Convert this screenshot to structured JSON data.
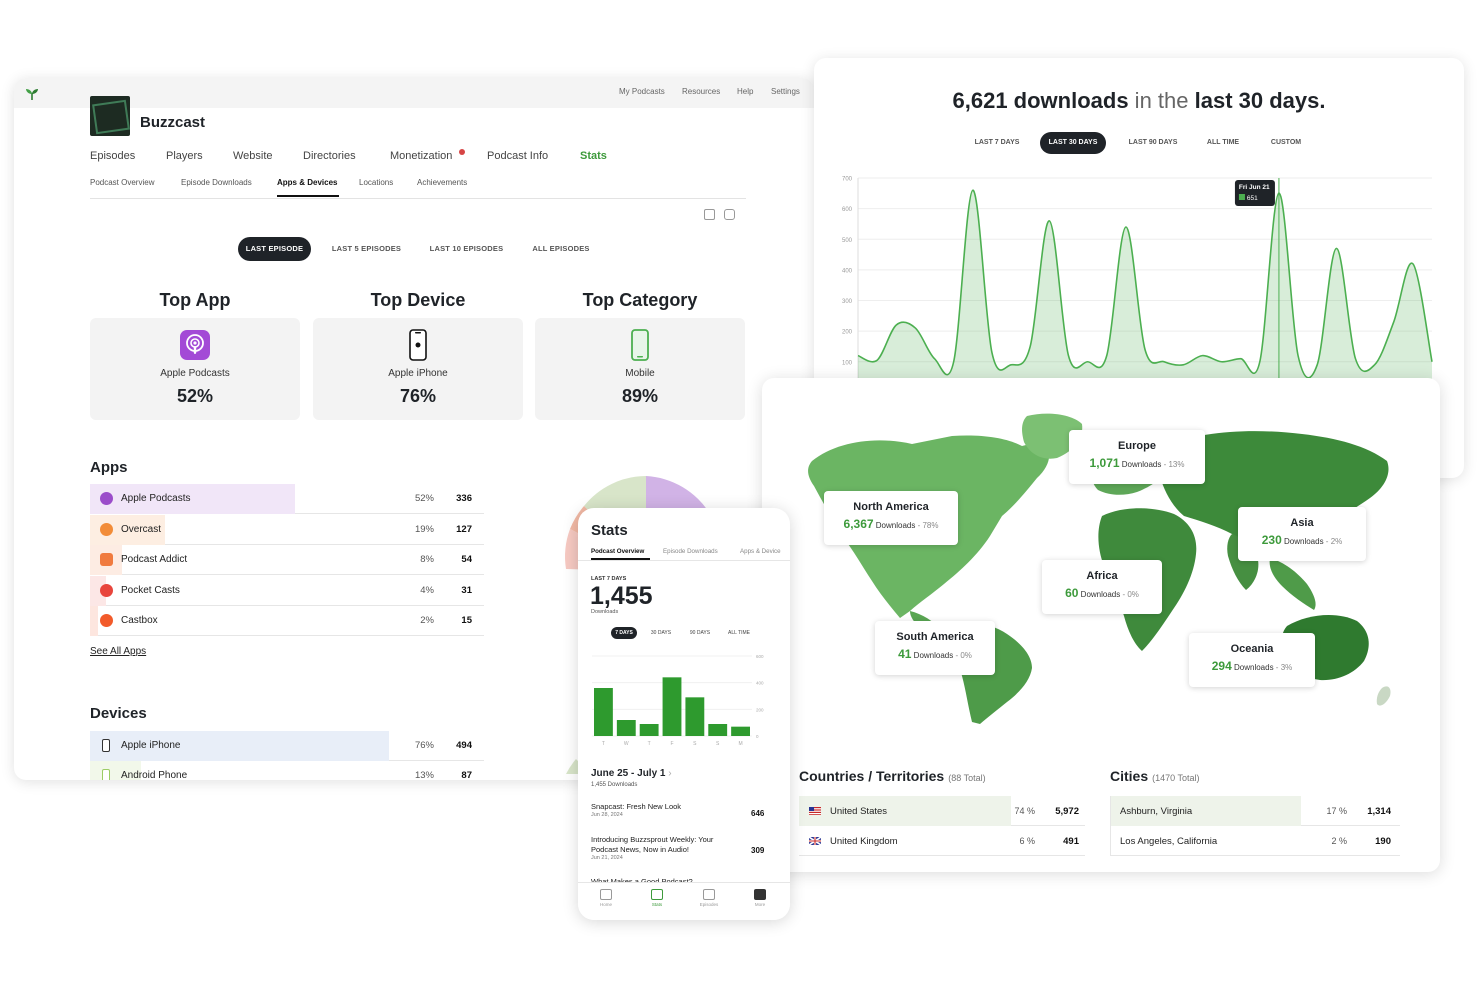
{
  "dashboard": {
    "top_links": [
      "My Podcasts",
      "Resources",
      "Help",
      "Settings"
    ],
    "podcast_title": "Buzzcast",
    "tabs": [
      "Episodes",
      "Players",
      "Website",
      "Directories",
      "Monetization",
      "Podcast Info",
      "Stats"
    ],
    "active_tab": "Stats",
    "subtabs": [
      "Podcast Overview",
      "Episode Downloads",
      "Apps & Devices",
      "Locations",
      "Achievements"
    ],
    "active_subtab": "Apps & Devices",
    "episode_filters": [
      "LAST EPISODE",
      "LAST 5 EPISODES",
      "LAST 10 EPISODES",
      "ALL EPISODES"
    ],
    "active_filter": "LAST EPISODE",
    "top_cards": [
      {
        "heading": "Top App",
        "label": "Apple Podcasts",
        "value": "52%",
        "icon": "apple-podcasts-icon"
      },
      {
        "heading": "Top Device",
        "label": "Apple iPhone",
        "value": "76%",
        "icon": "iphone-icon"
      },
      {
        "heading": "Top Category",
        "label": "Mobile",
        "value": "89%",
        "icon": "mobile-icon"
      }
    ],
    "apps_heading": "Apps",
    "apps": [
      {
        "name": "Apple Podcasts",
        "pct": "52%",
        "count": "336",
        "share": 0.52,
        "color": "#9b4dca"
      },
      {
        "name": "Overcast",
        "pct": "19%",
        "count": "127",
        "share": 0.19,
        "color": "#f28c38"
      },
      {
        "name": "Podcast Addict",
        "pct": "8%",
        "count": "54",
        "share": 0.08,
        "color": "#f07b3f"
      },
      {
        "name": "Pocket Casts",
        "pct": "4%",
        "count": "31",
        "share": 0.04,
        "color": "#e8453c"
      },
      {
        "name": "Castbox",
        "pct": "2%",
        "count": "15",
        "share": 0.02,
        "color": "#f25a2a"
      }
    ],
    "see_all": "See All Apps",
    "devices_heading": "Devices",
    "devices": [
      {
        "name": "Apple iPhone",
        "pct": "76%",
        "count": "494",
        "share": 0.76,
        "color": "#333333"
      },
      {
        "name": "Android Phone",
        "pct": "13%",
        "count": "87",
        "share": 0.13,
        "color": "#9ccc65"
      }
    ]
  },
  "downloads_chart": {
    "headline": {
      "count": "6,621 downloads",
      "mid": " in the ",
      "period": "last 30 days."
    },
    "ranges": [
      "LAST 7 DAYS",
      "LAST 30 DAYS",
      "LAST 90 DAYS",
      "ALL TIME",
      "CUSTOM"
    ],
    "active_range": "LAST 30 DAYS",
    "tooltip": {
      "date": "Fri Jun 21",
      "value": "651"
    }
  },
  "chart_data": {
    "type": "area",
    "title": "",
    "xlabel": "",
    "ylabel": "",
    "y_ticks": [
      100,
      200,
      300,
      400,
      500,
      600,
      700
    ],
    "ylim": [
      60,
      700
    ],
    "grid": true,
    "color": "#4caf50",
    "values": [
      120,
      105,
      220,
      210,
      110,
      100,
      660,
      130,
      90,
      150,
      560,
      120,
      100,
      120,
      540,
      140,
      100,
      90,
      120,
      100,
      110,
      100,
      651,
      120,
      90,
      470,
      110,
      90,
      230,
      420,
      100
    ]
  },
  "map": {
    "regions": [
      {
        "name": "North America",
        "downloads": "6,367",
        "label": "Downloads",
        "pct": " - 78%"
      },
      {
        "name": "Europe",
        "downloads": "1,071",
        "label": "Downloads",
        "pct": " - 13%"
      },
      {
        "name": "Asia",
        "downloads": "230",
        "label": "Downloads",
        "pct": " - 2%"
      },
      {
        "name": "Africa",
        "downloads": "60",
        "label": "Downloads",
        "pct": " - 0%"
      },
      {
        "name": "South America",
        "downloads": "41",
        "label": "Downloads",
        "pct": " - 0%"
      },
      {
        "name": "Oceania",
        "downloads": "294",
        "label": "Downloads",
        "pct": " - 3%"
      }
    ],
    "countries_heading": "Countries / Territories",
    "countries_total": "(88 Total)",
    "countries": [
      {
        "name": "United States",
        "pct": "74 %",
        "count": "5,972",
        "flag": "us-flag"
      },
      {
        "name": "United Kingdom",
        "pct": "6 %",
        "count": "491",
        "flag": "uk-flag"
      }
    ],
    "cities_heading": "Cities",
    "cities_total": "(1470 Total)",
    "cities": [
      {
        "name": "Ashburn, Virginia",
        "pct": "17 %",
        "count": "1,314"
      },
      {
        "name": "Los Angeles, California",
        "pct": "2 %",
        "count": "190"
      }
    ]
  },
  "phone": {
    "title": "Stats",
    "tabs": [
      "Podcast Overview",
      "Episode Downloads",
      "Apps & Device"
    ],
    "range_label": "LAST 7 DAYS",
    "big_number": "1,455",
    "big_sub": "Downloads",
    "ranges": [
      "7 DAYS",
      "30 DAYS",
      "90 DAYS",
      "ALL TIME"
    ],
    "active_range": "7 DAYS",
    "week_label": "June 25 - July 1",
    "week_sub": "1,455 Downloads",
    "episodes": [
      {
        "title": "Snapcast: Fresh New Look",
        "date": "Jun 28, 2024",
        "count": "646"
      },
      {
        "title": "Introducing Buzzsprout Weekly: Your Podcast News, Now in Audio!",
        "date": "Jun 21, 2024",
        "count": "309"
      },
      {
        "title": "What Makes a Good Podcast?",
        "date": "",
        "count": ""
      }
    ],
    "nav": [
      "Home",
      "Stats",
      "Episodes",
      "More"
    ],
    "active_nav": "Stats",
    "weekly_chart": {
      "type": "bar",
      "categories": [
        "T",
        "W",
        "T",
        "F",
        "S",
        "S",
        "M"
      ],
      "values": [
        360,
        120,
        90,
        440,
        290,
        90,
        70
      ],
      "y_ticks": [
        0,
        200,
        400,
        600
      ],
      "ylim": [
        0,
        600
      ]
    }
  }
}
